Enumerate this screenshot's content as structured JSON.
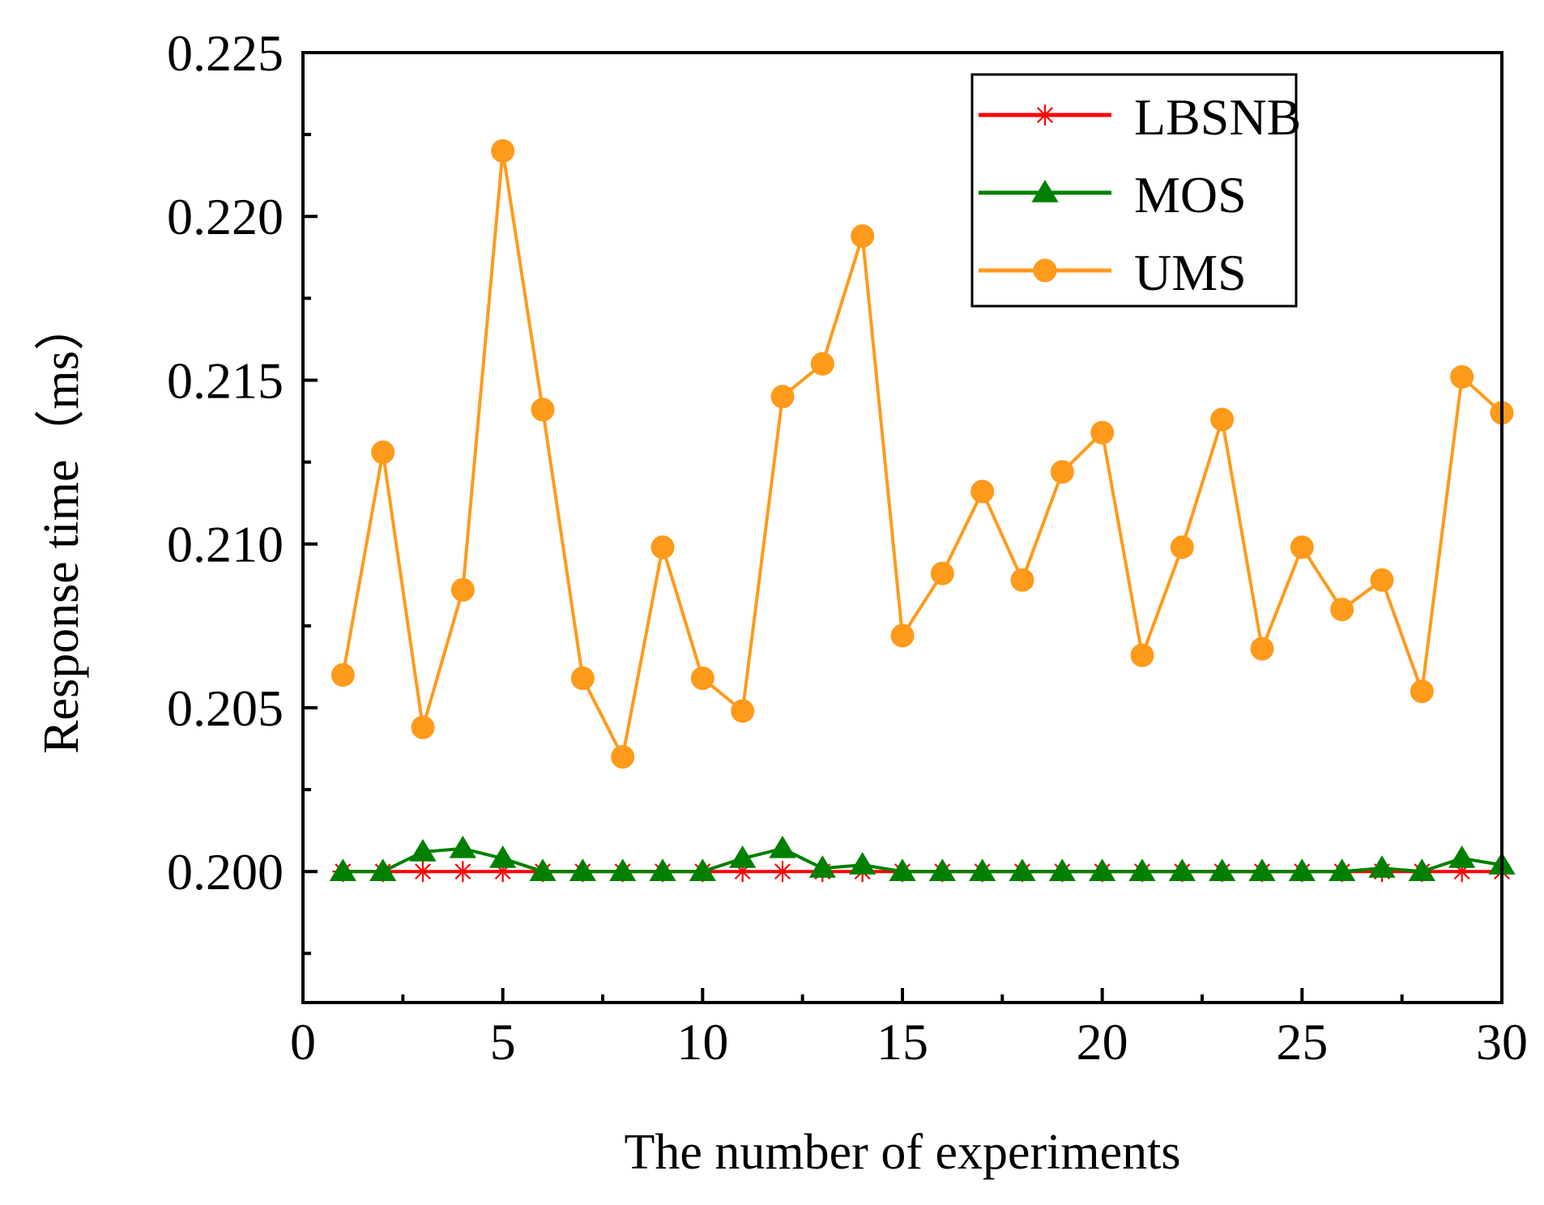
{
  "chart_data": {
    "type": "line",
    "title": "",
    "xlabel": "The number of experiments",
    "ylabel": "Response time（ms）",
    "xlim": [
      0,
      30
    ],
    "ylim": [
      0.196,
      0.225
    ],
    "xticks": [
      0,
      5,
      10,
      15,
      20,
      25,
      30
    ],
    "xtick_labels": [
      "0",
      "5",
      "10",
      "15",
      "20",
      "25",
      "30"
    ],
    "yticks": [
      0.2,
      0.205,
      0.21,
      0.215,
      0.22,
      0.225
    ],
    "ytick_labels": [
      "0.200",
      "0.205",
      "0.210",
      "0.215",
      "0.220",
      "0.225"
    ],
    "legend_position": "top-right",
    "x": [
      1,
      2,
      3,
      4,
      5,
      6,
      7,
      8,
      9,
      10,
      11,
      12,
      13,
      14,
      15,
      16,
      17,
      18,
      19,
      20,
      21,
      22,
      23,
      24,
      25,
      26,
      27,
      28,
      29,
      30
    ],
    "series": [
      {
        "name": "LBSNB",
        "color": "#ff0000",
        "marker": "asterisk",
        "values": [
          0.2,
          0.2,
          0.2,
          0.2,
          0.2,
          0.2,
          0.2,
          0.2,
          0.2,
          0.2,
          0.2,
          0.2,
          0.2,
          0.2,
          0.2,
          0.2,
          0.2,
          0.2,
          0.2,
          0.2,
          0.2,
          0.2,
          0.2,
          0.2,
          0.2,
          0.2,
          0.2,
          0.2,
          0.2,
          0.2
        ]
      },
      {
        "name": "MOS",
        "color": "#008000",
        "marker": "triangle",
        "values": [
          0.2,
          0.2,
          0.2006,
          0.2007,
          0.2004,
          0.2,
          0.2,
          0.2,
          0.2,
          0.2,
          0.2004,
          0.2007,
          0.2001,
          0.2002,
          0.2,
          0.2,
          0.2,
          0.2,
          0.2,
          0.2,
          0.2,
          0.2,
          0.2,
          0.2,
          0.2,
          0.2,
          0.2001,
          0.2,
          0.2004,
          0.2002
        ]
      },
      {
        "name": "UMS",
        "color": "#ff9a1a",
        "marker": "circle",
        "values": [
          0.206,
          0.2128,
          0.2044,
          0.2086,
          0.222,
          0.2141,
          0.2059,
          0.2035,
          0.2099,
          0.2059,
          0.2049,
          0.2145,
          0.2155,
          0.2194,
          0.2072,
          0.2091,
          0.2116,
          0.2089,
          0.2122,
          0.2134,
          0.2066,
          0.2099,
          0.2138,
          0.2068,
          0.2099,
          0.208,
          0.2089,
          0.2055,
          0.2151,
          0.214
        ]
      }
    ]
  }
}
